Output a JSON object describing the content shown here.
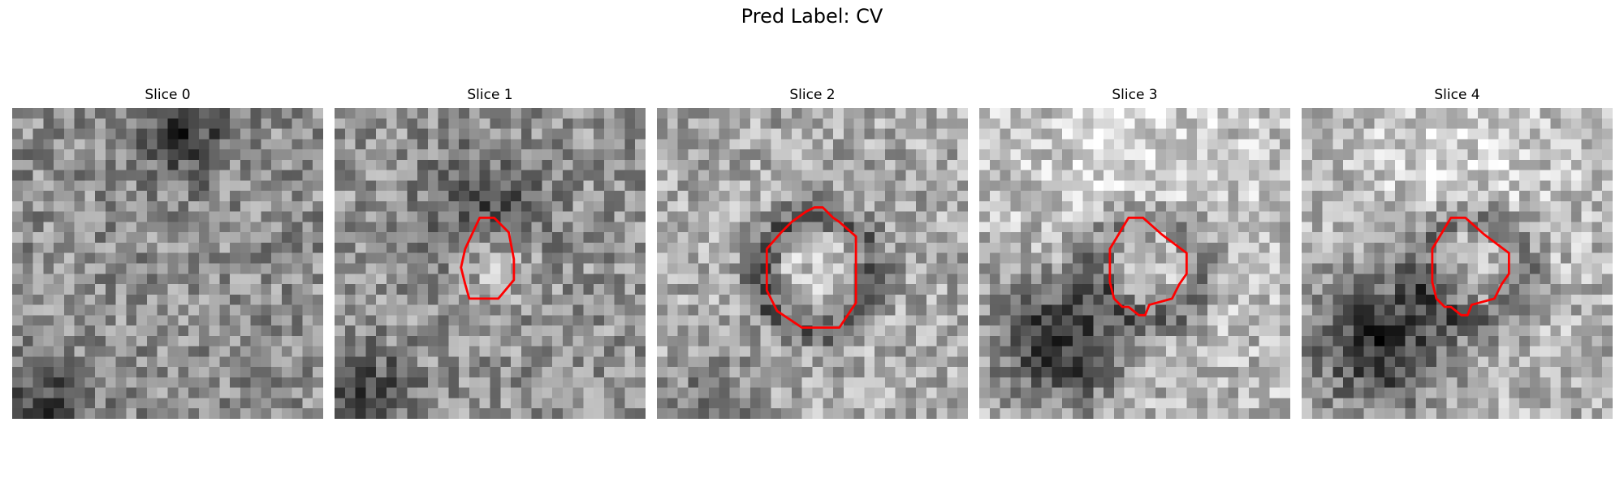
{
  "figure": {
    "title": "Pred Label: CV"
  },
  "panels": [
    {
      "title": "Slice 0",
      "seed": 11,
      "contour": "none",
      "bright": "none",
      "dark": "top-center",
      "tone": 0.56
    },
    {
      "title": "Slice 1",
      "seed": 23,
      "contour": "small",
      "bright": "center-small",
      "dark": "scattered",
      "tone": 0.58
    },
    {
      "title": "Slice 2",
      "seed": 37,
      "contour": "large",
      "bright": "center-large",
      "dark": "ring",
      "tone": 0.66
    },
    {
      "title": "Slice 3",
      "seed": 41,
      "contour": "small",
      "bright": "top",
      "dark": "bottom-left",
      "tone": 0.72
    },
    {
      "title": "Slice 4",
      "seed": 53,
      "contour": "small",
      "bright": "top",
      "dark": "bottom-left",
      "tone": 0.7
    }
  ],
  "colors": {
    "contour": "#ff0000",
    "background": "#ffffff"
  }
}
